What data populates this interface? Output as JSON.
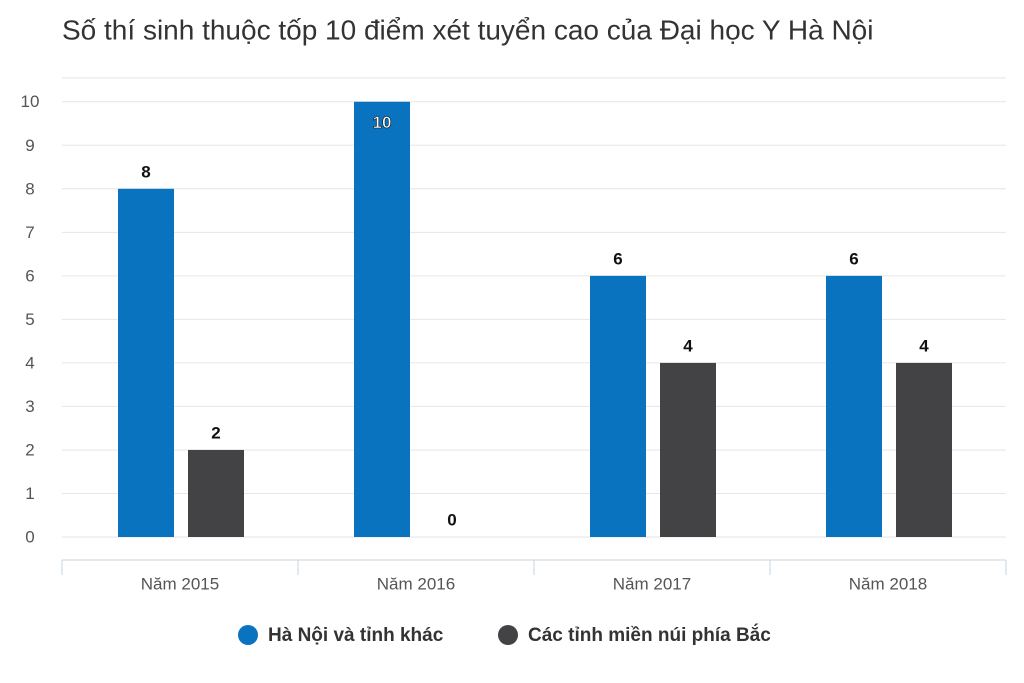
{
  "chart_data": {
    "type": "bar",
    "title": "Số thí sinh thuộc tốp 10 điểm xét tuyển cao của Đại học Y Hà Nội",
    "categories": [
      "Năm 2015",
      "Năm 2016",
      "Năm 2017",
      "Năm 2018"
    ],
    "series": [
      {
        "name": "Hà Nội và tỉnh khác",
        "color": "#0a73c0",
        "values": [
          8,
          10,
          6,
          6
        ]
      },
      {
        "name": "Các tỉnh miền núi phía Bắc",
        "color": "#434346",
        "values": [
          2,
          0,
          4,
          4
        ]
      }
    ],
    "ylim": [
      0,
      10.5
    ],
    "yticks": [
      0,
      1,
      2,
      3,
      4,
      5,
      6,
      7,
      8,
      9,
      10
    ],
    "grid": true
  }
}
